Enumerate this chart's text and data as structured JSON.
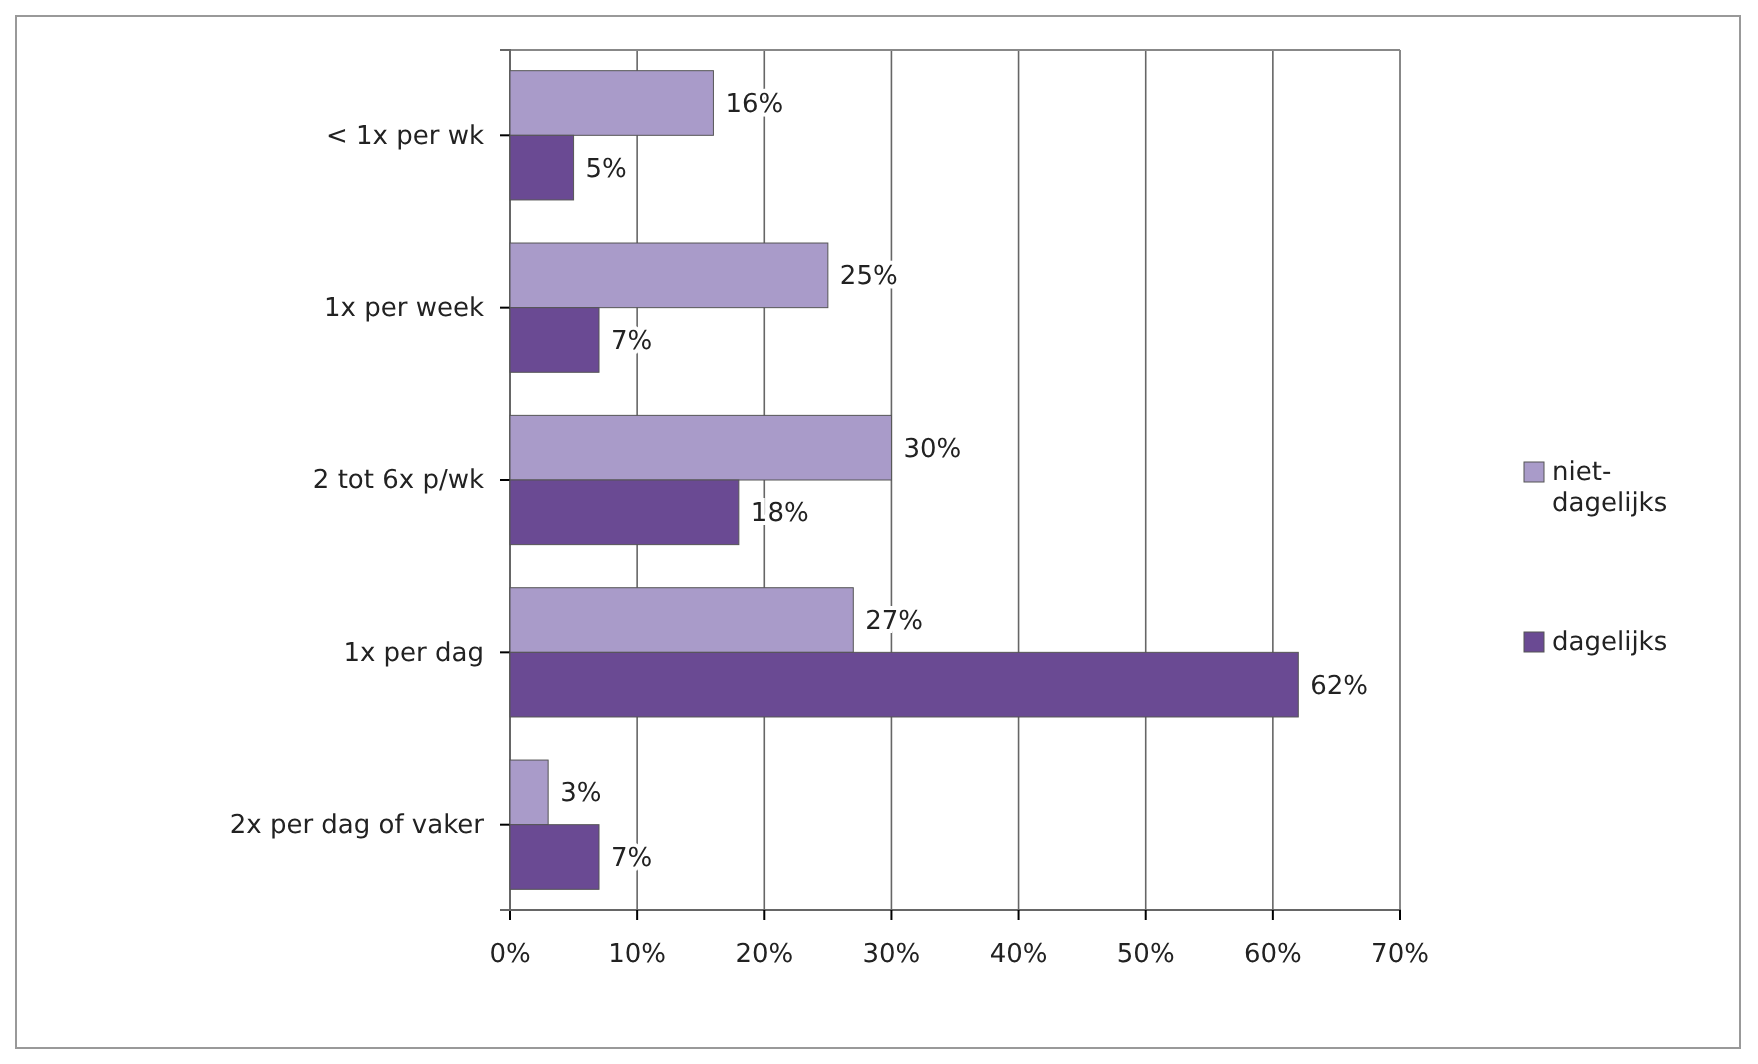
{
  "chart_data": {
    "type": "bar",
    "orientation": "horizontal",
    "categories": [
      "< 1x per wk",
      "1x per week",
      "2 tot 6x p/wk",
      "1x per dag",
      "2x per dag of vaker"
    ],
    "series": [
      {
        "name": "niet-dagelijks",
        "color": "#a99bc9",
        "values": [
          16,
          25,
          30,
          27,
          3
        ],
        "value_labels": [
          "16%",
          "25%",
          "30%",
          "27%",
          "3%"
        ]
      },
      {
        "name": "dagelijks",
        "color": "#6a4a93",
        "values": [
          5,
          7,
          18,
          62,
          7
        ],
        "value_labels": [
          "5%",
          "7%",
          "18%",
          "62%",
          "7%"
        ]
      }
    ],
    "xlim": [
      0,
      70
    ],
    "xticks": [
      {
        "value": 0,
        "label": "0%"
      },
      {
        "value": 10,
        "label": "10%"
      },
      {
        "value": 20,
        "label": "20%"
      },
      {
        "value": 30,
        "label": "30%"
      },
      {
        "value": 40,
        "label": "40%"
      },
      {
        "value": 50,
        "label": "50%"
      },
      {
        "value": 60,
        "label": "60%"
      },
      {
        "value": 70,
        "label": "70%"
      }
    ],
    "grid": "x",
    "legend": "right"
  }
}
